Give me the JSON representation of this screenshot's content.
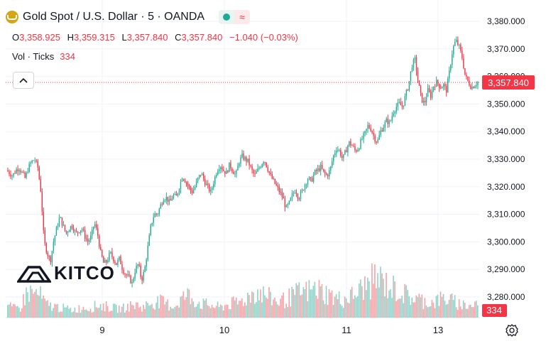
{
  "header": {
    "symbol_title": "Gold Spot / U.S. Dollar · 5 · OANDA",
    "open_label": "O",
    "open_value": "3,358.925",
    "high_label": "H",
    "high_value": "3,359.315",
    "low_label": "L",
    "low_value": "3,357.840",
    "close_label": "C",
    "close_value": "3,357.840",
    "change_value": "−1.040 (−0.03%)",
    "volume_label": "Vol · Ticks",
    "volume_value": "334",
    "collapse_icon": "chevron-up-icon",
    "status_icons": [
      "market-open-dot-icon",
      "delayed-wave-icon"
    ]
  },
  "branding": {
    "watermark": "KITCO"
  },
  "colors": {
    "up": "#22ab94",
    "down": "#f23645",
    "up_volume": "#8fd3c8",
    "down_volume": "#f5a3a8",
    "grid": "#f0f3fa",
    "axis_text": "#131722",
    "price_line": "#f23645"
  },
  "chart_data": {
    "type": "candlestick",
    "title": "Gold Spot / U.S. Dollar",
    "interval": "5",
    "x_ticks": [
      "9",
      "10",
      "11",
      "13"
    ],
    "y_ticks": [
      "3,380.000",
      "3,370.000",
      "3,360.000",
      "3,350.000",
      "3,340.000",
      "3,330.000",
      "3,320.000",
      "3,310.000",
      "3,300.000",
      "3,290.000",
      "3,280.000"
    ],
    "ylim": [
      3274,
      3382
    ],
    "last_price": 3357.84,
    "last_price_label": "3,357.840",
    "last_volume": 334,
    "last_volume_label": "334",
    "grid": true,
    "price_path": [
      3326,
      3325,
      3324,
      3326,
      3327,
      3325,
      3323,
      3327,
      3329,
      3330,
      3327,
      3318,
      3300,
      3296,
      3293,
      3300,
      3305,
      3309,
      3306,
      3303,
      3305,
      3306,
      3303,
      3304,
      3305,
      3302,
      3300,
      3302,
      3307,
      3303,
      3296,
      3292,
      3293,
      3296,
      3294,
      3292,
      3294,
      3290,
      3288,
      3287,
      3285,
      3290,
      3292,
      3286,
      3290,
      3298,
      3306,
      3310,
      3310,
      3313,
      3316,
      3316,
      3314,
      3317,
      3316,
      3320,
      3324,
      3322,
      3320,
      3318,
      3320,
      3323,
      3325,
      3322,
      3320,
      3318,
      3322,
      3326,
      3328,
      3326,
      3325,
      3328,
      3326,
      3324,
      3329,
      3331,
      3330,
      3329,
      3326,
      3324,
      3326,
      3328,
      3330,
      3327,
      3324,
      3322,
      3320,
      3318,
      3316,
      3312,
      3314,
      3317,
      3319,
      3316,
      3318,
      3321,
      3323,
      3322,
      3325,
      3326,
      3327,
      3325,
      3324,
      3326,
      3331,
      3334,
      3333,
      3330,
      3333,
      3336,
      3335,
      3333,
      3334,
      3337,
      3339,
      3342,
      3341,
      3338,
      3336,
      3340,
      3342,
      3344,
      3343,
      3347,
      3349,
      3350,
      3349,
      3353,
      3357,
      3364,
      3366,
      3358,
      3352,
      3350,
      3355,
      3353,
      3357,
      3358,
      3356,
      3357,
      3355,
      3362,
      3370,
      3373,
      3371,
      3367,
      3360,
      3358,
      3356,
      3357,
      3358
    ],
    "volume_profile": [
      18,
      14,
      16,
      40,
      38,
      35,
      20,
      18,
      16,
      14,
      12,
      14,
      16,
      15,
      20,
      18,
      16,
      14,
      15,
      18,
      20,
      16,
      22,
      25,
      24,
      20,
      18,
      30,
      35,
      28,
      22,
      20,
      18,
      16,
      20,
      22,
      24,
      30,
      38,
      40,
      35,
      30,
      25,
      28,
      32,
      38,
      40,
      42,
      45,
      40,
      35,
      30,
      28,
      32,
      36,
      45,
      52,
      60,
      58,
      50,
      45,
      40,
      35,
      30,
      28,
      25,
      24,
      28,
      30,
      26,
      22,
      20,
      18,
      24
    ]
  }
}
